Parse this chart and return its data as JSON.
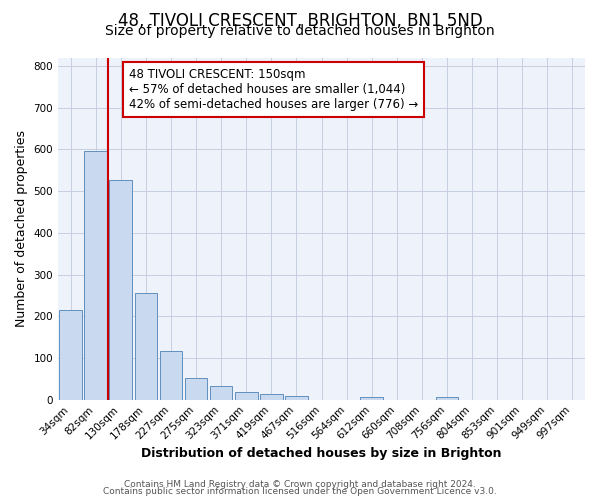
{
  "title": "48, TIVOLI CRESCENT, BRIGHTON, BN1 5ND",
  "subtitle": "Size of property relative to detached houses in Brighton",
  "xlabel": "Distribution of detached houses by size in Brighton",
  "ylabel": "Number of detached properties",
  "bar_labels": [
    "34sqm",
    "82sqm",
    "130sqm",
    "178sqm",
    "227sqm",
    "275sqm",
    "323sqm",
    "371sqm",
    "419sqm",
    "467sqm",
    "516sqm",
    "564sqm",
    "612sqm",
    "660sqm",
    "708sqm",
    "756sqm",
    "804sqm",
    "853sqm",
    "901sqm",
    "949sqm",
    "997sqm"
  ],
  "bar_values": [
    215,
    597,
    527,
    255,
    117,
    51,
    34,
    18,
    13,
    8,
    0,
    0,
    7,
    0,
    0,
    7,
    0,
    0,
    0,
    0,
    0
  ],
  "bar_color": "#c9d9f0",
  "bar_edge_color": "#6090c0",
  "vline_x_index": 2,
  "vline_color": "#cc0000",
  "annotation_title": "48 TIVOLI CRESCENT: 150sqm",
  "annotation_line1": "← 57% of detached houses are smaller (1,044)",
  "annotation_line2": "42% of semi-detached houses are larger (776) →",
  "annotation_box_color": "#cc0000",
  "annotation_box_facecolor": "#ffffff",
  "ylim": [
    0,
    820
  ],
  "yticks": [
    0,
    100,
    200,
    300,
    400,
    500,
    600,
    700,
    800
  ],
  "footer_line1": "Contains HM Land Registry data © Crown copyright and database right 2024.",
  "footer_line2": "Contains public sector information licensed under the Open Government Licence v3.0.",
  "background_color": "#ffffff",
  "plot_bg_color": "#eef2fa",
  "grid_color": "#c5cfe0",
  "title_fontsize": 12,
  "subtitle_fontsize": 10,
  "axis_label_fontsize": 9,
  "tick_fontsize": 7.5,
  "annotation_fontsize": 8.5,
  "footer_fontsize": 6.5
}
